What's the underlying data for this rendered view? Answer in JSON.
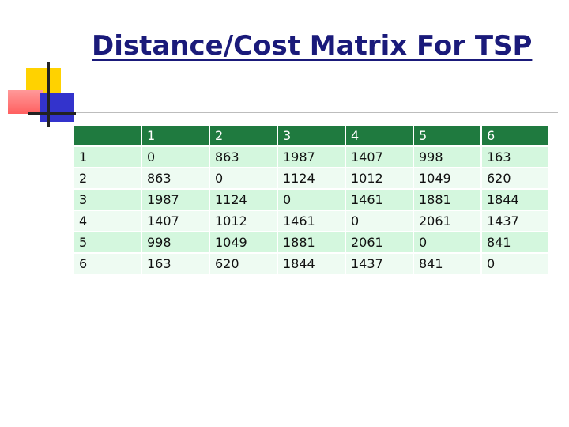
{
  "title": "Distance/Cost Matrix For TSP",
  "colors": {
    "title": "#1a1a7a",
    "header_row": "#1f7a3f",
    "row_dark": "#d4f7de",
    "row_light": "#eefbf2",
    "accent_yellow": "#ffd200",
    "accent_red": "#ff8080",
    "accent_blue": "#3333cc"
  },
  "table": {
    "header": [
      "",
      "1",
      "2",
      "3",
      "4",
      "5",
      "6"
    ],
    "rows": [
      [
        "1",
        "0",
        "863",
        "1987",
        "1407",
        "998",
        "163"
      ],
      [
        "2",
        "863",
        "0",
        "1124",
        "1012",
        "1049",
        "620"
      ],
      [
        "3",
        "1987",
        "1124",
        "0",
        "1461",
        "1881",
        "1844"
      ],
      [
        "4",
        "1407",
        "1012",
        "1461",
        "0",
        "2061",
        "1437"
      ],
      [
        "5",
        "998",
        "1049",
        "1881",
        "2061",
        "0",
        "841"
      ],
      [
        "6",
        "163",
        "620",
        "1844",
        "1437",
        "841",
        "0"
      ]
    ]
  }
}
